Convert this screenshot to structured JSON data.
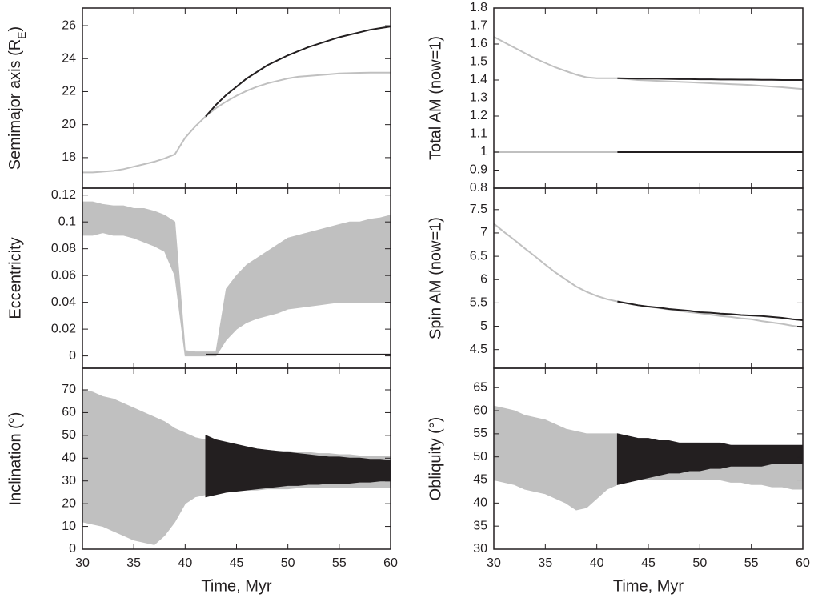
{
  "chart_data": [
    {
      "type": "line",
      "ylabel": [
        "Semimajor axis (R",
        "E",
        ")"
      ],
      "x": [
        30,
        31,
        32,
        33,
        34,
        35,
        36,
        37,
        38,
        39,
        40,
        41,
        42,
        43,
        44,
        45,
        46,
        47,
        48,
        49,
        50,
        51,
        52,
        53,
        54,
        55,
        56,
        57,
        58,
        59,
        60
      ],
      "xlim": [
        30,
        60
      ],
      "xticks": [
        30,
        35,
        40,
        45,
        50,
        55,
        60
      ],
      "ylim": [
        16.15,
        27.07
      ],
      "yticks": [
        18,
        20,
        22,
        24,
        26
      ],
      "series": [
        {
          "color": "#c0c0c0",
          "values": [
            17.1,
            17.1,
            17.15,
            17.2,
            17.3,
            17.45,
            17.6,
            17.75,
            17.95,
            18.2,
            19.2,
            19.9,
            20.5,
            21.0,
            21.4,
            21.75,
            22.05,
            22.3,
            22.5,
            22.65,
            22.8,
            22.9,
            22.95,
            23.0,
            23.05,
            23.1,
            23.12,
            23.14,
            23.15,
            23.15,
            23.15
          ]
        },
        {
          "color": "#231f20",
          "values": [
            null,
            null,
            null,
            null,
            null,
            null,
            null,
            null,
            null,
            null,
            null,
            null,
            20.5,
            21.2,
            21.8,
            22.3,
            22.8,
            23.2,
            23.6,
            23.9,
            24.2,
            24.45,
            24.7,
            24.9,
            25.1,
            25.3,
            25.45,
            25.6,
            25.75,
            25.85,
            25.95
          ]
        }
      ]
    },
    {
      "type": "line",
      "ylabel": "Total AM (now=1)",
      "x": [
        30,
        31,
        32,
        33,
        34,
        35,
        36,
        37,
        38,
        39,
        40,
        41,
        42,
        43,
        44,
        45,
        46,
        47,
        48,
        49,
        50,
        51,
        52,
        53,
        54,
        55,
        56,
        57,
        58,
        59,
        60
      ],
      "xlim": [
        30,
        60
      ],
      "xticks": [
        30,
        35,
        40,
        45,
        50,
        55,
        60
      ],
      "ylim": [
        0.8,
        1.8
      ],
      "yticks": [
        0.8,
        0.9,
        1,
        1.1,
        1.2,
        1.3,
        1.4,
        1.5,
        1.6,
        1.7,
        1.8
      ],
      "series": [
        {
          "color": "#c0c0c0",
          "values": [
            1.64,
            1.61,
            1.58,
            1.55,
            1.52,
            1.495,
            1.47,
            1.45,
            1.43,
            1.415,
            1.41,
            1.41,
            1.41,
            1.405,
            1.4,
            1.398,
            1.395,
            1.392,
            1.39,
            1.388,
            1.385,
            1.382,
            1.38,
            1.377,
            1.375,
            1.372,
            1.368,
            1.364,
            1.36,
            1.355,
            1.35
          ]
        },
        {
          "color": "#c0c0c0",
          "values": [
            1,
            1,
            1,
            1,
            1,
            1,
            1,
            1,
            1,
            1,
            1,
            1,
            1,
            1,
            1,
            1,
            1,
            1,
            1,
            1,
            1,
            1,
            1,
            1,
            1,
            1,
            1,
            1,
            1,
            1,
            1
          ]
        },
        {
          "color": "#231f20",
          "values": [
            null,
            null,
            null,
            null,
            null,
            null,
            null,
            null,
            null,
            null,
            null,
            null,
            1.41,
            1.409,
            1.408,
            1.408,
            1.407,
            1.406,
            1.405,
            1.405,
            1.404,
            1.404,
            1.403,
            1.403,
            1.402,
            1.402,
            1.401,
            1.401,
            1.4,
            1.4,
            1.4
          ]
        },
        {
          "color": "#231f20",
          "values": [
            null,
            null,
            null,
            null,
            null,
            null,
            null,
            null,
            null,
            null,
            null,
            null,
            1,
            1,
            1,
            1,
            1,
            1,
            1,
            1,
            1,
            1,
            1,
            1,
            1,
            1,
            1,
            1,
            1,
            1,
            1
          ]
        }
      ]
    },
    {
      "type": "line",
      "ylabel": "Eccentricity",
      "x": [
        30,
        31,
        32,
        33,
        34,
        35,
        36,
        37,
        38,
        39,
        40,
        41,
        42,
        43,
        44,
        45,
        46,
        47,
        48,
        49,
        50,
        51,
        52,
        53,
        54,
        55,
        56,
        57,
        58,
        59,
        60
      ],
      "xlim": [
        30,
        60
      ],
      "xticks": [
        30,
        35,
        40,
        45,
        50,
        55,
        60
      ],
      "ylim": [
        -0.0092,
        0.1252
      ],
      "yticks": [
        0,
        0.02,
        0.04,
        0.06,
        0.08,
        0.1,
        0.12
      ],
      "series": [
        {
          "color": "#c0c0c0",
          "low": [
            0.09,
            0.09,
            0.092,
            0.09,
            0.09,
            0.088,
            0.085,
            0.082,
            0.078,
            0.06,
            0,
            0,
            0,
            0,
            0.012,
            0.02,
            0.025,
            0.028,
            0.03,
            0.032,
            0.035,
            0.036,
            0.037,
            0.038,
            0.039,
            0.04,
            0.04,
            0.04,
            0.04,
            0.04,
            0.04
          ],
          "high": [
            0.115,
            0.115,
            0.113,
            0.112,
            0.112,
            0.11,
            0.11,
            0.108,
            0.105,
            0.1,
            0.004,
            0.003,
            0.003,
            0.003,
            0.05,
            0.06,
            0.068,
            0.073,
            0.078,
            0.083,
            0.088,
            0.09,
            0.092,
            0.094,
            0.096,
            0.098,
            0.1,
            0.1,
            0.102,
            0.103,
            0.105
          ]
        },
        {
          "color": "#231f20",
          "values": [
            null,
            null,
            null,
            null,
            null,
            null,
            null,
            null,
            null,
            null,
            null,
            null,
            0.001,
            0.001,
            0.001,
            0.001,
            0.001,
            0.001,
            0.001,
            0.001,
            0.001,
            0.001,
            0.001,
            0.001,
            0.001,
            0.001,
            0.001,
            0.001,
            0.001,
            0.001,
            0.001
          ]
        }
      ]
    },
    {
      "type": "line",
      "ylabel": "Spin AM (now=1)",
      "x": [
        30,
        31,
        32,
        33,
        34,
        35,
        36,
        37,
        38,
        39,
        40,
        41,
        42,
        43,
        44,
        45,
        46,
        47,
        48,
        49,
        50,
        51,
        52,
        53,
        54,
        55,
        56,
        57,
        58,
        59,
        60
      ],
      "xlim": [
        30,
        60
      ],
      "xticks": [
        30,
        35,
        40,
        45,
        50,
        55,
        60
      ],
      "ylim": [
        4.1,
        7.96
      ],
      "yticks": [
        4.5,
        5,
        5.5,
        6,
        6.5,
        7,
        7.5
      ],
      "series": [
        {
          "color": "#c0c0c0",
          "values": [
            7.2,
            7.02,
            6.85,
            6.67,
            6.5,
            6.32,
            6.15,
            6.0,
            5.85,
            5.74,
            5.65,
            5.58,
            5.53,
            5.49,
            5.45,
            5.42,
            5.39,
            5.36,
            5.33,
            5.3,
            5.28,
            5.25,
            5.22,
            5.2,
            5.17,
            5.15,
            5.11,
            5.08,
            5.05,
            5.01,
            4.98
          ]
        },
        {
          "color": "#231f20",
          "values": [
            null,
            null,
            null,
            null,
            null,
            null,
            null,
            null,
            null,
            null,
            null,
            null,
            5.53,
            5.49,
            5.45,
            5.42,
            5.4,
            5.37,
            5.35,
            5.33,
            5.3,
            5.29,
            5.27,
            5.26,
            5.24,
            5.23,
            5.22,
            5.2,
            5.18,
            5.15,
            5.13
          ]
        }
      ]
    },
    {
      "type": "line",
      "ylabel": "Inclination (°)",
      "xlabel": "Time, Myr",
      "x": [
        30,
        31,
        32,
        33,
        34,
        35,
        36,
        37,
        38,
        39,
        40,
        41,
        42,
        43,
        44,
        45,
        46,
        47,
        48,
        49,
        50,
        51,
        52,
        53,
        54,
        55,
        56,
        57,
        58,
        59,
        60
      ],
      "xlim": [
        30,
        60
      ],
      "xticks": [
        30,
        35,
        40,
        45,
        50,
        55,
        60
      ],
      "ylim": [
        0,
        79.5
      ],
      "yticks": [
        0,
        10,
        20,
        30,
        40,
        50,
        60,
        70
      ],
      "series": [
        {
          "color": "#c0c0c0",
          "low": [
            12,
            11,
            10,
            8,
            6,
            4,
            3,
            2,
            6,
            12,
            20,
            23,
            24,
            25,
            25.5,
            26,
            26,
            26,
            26.5,
            26.5,
            26.5,
            27,
            27,
            27,
            27,
            27,
            27,
            27,
            27,
            27,
            27
          ],
          "high": [
            70,
            69,
            67,
            66,
            64,
            62,
            60,
            58,
            56,
            53,
            51,
            49,
            48,
            47,
            46,
            45,
            44.5,
            44,
            43.5,
            43,
            43,
            42.5,
            42.5,
            42,
            42,
            41.5,
            41.5,
            41,
            41,
            41,
            41
          ]
        },
        {
          "color": "#231f20",
          "low": [
            null,
            null,
            null,
            null,
            null,
            null,
            null,
            null,
            null,
            null,
            null,
            null,
            23,
            24,
            25,
            25.5,
            26,
            26.5,
            27,
            27.5,
            28,
            28,
            28.5,
            28.5,
            29,
            29,
            29,
            29.5,
            29.5,
            30,
            30
          ],
          "high": [
            null,
            null,
            null,
            null,
            null,
            null,
            null,
            null,
            null,
            null,
            null,
            null,
            50,
            48,
            47,
            46,
            45,
            44,
            43.5,
            43,
            42.5,
            42,
            41.5,
            41,
            40.5,
            40.5,
            40,
            40,
            39.5,
            39.5,
            39
          ]
        }
      ]
    },
    {
      "type": "line",
      "ylabel": "Obliquity (°)",
      "xlabel": "Time, Myr",
      "x": [
        30,
        31,
        32,
        33,
        34,
        35,
        36,
        37,
        38,
        39,
        40,
        41,
        42,
        43,
        44,
        45,
        46,
        47,
        48,
        49,
        50,
        51,
        52,
        53,
        54,
        55,
        56,
        57,
        58,
        59,
        60
      ],
      "xlim": [
        30,
        60
      ],
      "xticks": [
        30,
        35,
        40,
        45,
        50,
        55,
        60
      ],
      "ylim": [
        30,
        69.2
      ],
      "yticks": [
        30,
        35,
        40,
        45,
        50,
        55,
        60,
        65
      ],
      "series": [
        {
          "color": "#c0c0c0",
          "low": [
            45,
            44.5,
            44,
            43,
            42.5,
            42,
            41,
            40,
            38.5,
            39,
            41,
            43,
            44,
            44.5,
            45,
            45,
            45,
            45,
            45,
            45,
            45,
            45,
            45,
            44.5,
            44.5,
            44,
            44,
            43.5,
            43.5,
            43,
            43
          ],
          "high": [
            61,
            60.5,
            60,
            59,
            58.5,
            58,
            57,
            56,
            55.5,
            55,
            55,
            55,
            55,
            54.5,
            54,
            54,
            53.5,
            53.5,
            53,
            53,
            53,
            52.5,
            52.5,
            52.5,
            52,
            52,
            52,
            52,
            52,
            52,
            52
          ]
        },
        {
          "color": "#231f20",
          "low": [
            null,
            null,
            null,
            null,
            null,
            null,
            null,
            null,
            null,
            null,
            null,
            null,
            44,
            44.5,
            45,
            45.5,
            46,
            46.5,
            46.5,
            47,
            47,
            47.5,
            47.5,
            48,
            48,
            48,
            48,
            48.5,
            48.5,
            48.5,
            48.5
          ],
          "high": [
            null,
            null,
            null,
            null,
            null,
            null,
            null,
            null,
            null,
            null,
            null,
            null,
            55,
            54.5,
            54,
            54,
            53.5,
            53.5,
            53,
            53,
            53,
            53,
            53,
            52.5,
            52.5,
            52.5,
            52.5,
            52.5,
            52.5,
            52.5,
            52.5
          ]
        }
      ]
    }
  ]
}
